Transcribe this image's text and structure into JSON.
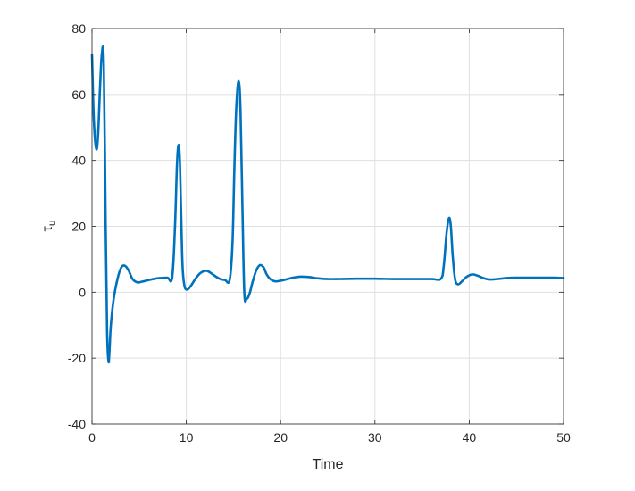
{
  "chart_data": {
    "type": "line",
    "xlabel": "Time",
    "ylabel": "τ",
    "ylabel_subscript": "u",
    "xlim": [
      0,
      50
    ],
    "ylim": [
      -40,
      80
    ],
    "xticks": [
      0,
      10,
      20,
      30,
      40,
      50
    ],
    "yticks": [
      -40,
      -20,
      0,
      20,
      40,
      60,
      80
    ],
    "xtick_labels": [
      "0",
      "10",
      "20",
      "30",
      "40",
      "50"
    ],
    "ytick_labels": [
      "-40",
      "-20",
      "0",
      "20",
      "40",
      "60",
      "80"
    ],
    "grid": true,
    "series": [
      {
        "color": "#0072BD",
        "x": [
          0,
          0.2,
          0.45,
          0.65,
          0.85,
          1.05,
          1.25,
          1.45,
          1.6,
          1.75,
          1.85,
          2.0,
          2.3,
          2.7,
          3.1,
          3.5,
          3.9,
          4.3,
          4.8,
          5.3,
          5.9,
          6.5,
          7.2,
          8.0,
          8.5,
          8.8,
          9.0,
          9.15,
          9.3,
          9.45,
          9.6,
          9.8,
          10.1,
          10.5,
          11.0,
          11.5,
          12.1,
          12.6,
          13.1,
          13.6,
          14.1,
          14.6,
          14.9,
          15.1,
          15.3,
          15.55,
          15.75,
          15.95,
          16.15,
          16.4,
          16.7,
          17.0,
          17.4,
          17.8,
          18.2,
          18.5,
          18.9,
          19.4,
          20.0,
          20.6,
          21.3,
          22.1,
          23.0,
          24.0,
          25.0,
          26.0,
          28.0,
          30.0,
          32.0,
          34.0,
          36.0,
          37.0,
          37.3,
          37.6,
          37.85,
          38.05,
          38.25,
          38.5,
          38.8,
          39.2,
          39.7,
          40.3,
          40.9,
          41.5,
          42.0,
          42.6,
          43.3,
          44.0,
          44.8,
          46.0,
          47.5,
          49.0,
          50.0
        ],
        "y": [
          72,
          52,
          43.5,
          48,
          62,
          72.5,
          69,
          20,
          -12,
          -21,
          -18,
          -10,
          -2,
          4,
          7.5,
          8,
          6.5,
          4,
          3,
          3.2,
          3.6,
          4.0,
          4.3,
          4.4,
          4.5,
          20,
          38,
          44.5,
          41,
          24,
          8,
          2,
          0.8,
          2,
          4.2,
          5.8,
          6.5,
          5.8,
          4.8,
          4.0,
          3.7,
          3.8,
          15,
          38,
          56,
          64,
          55,
          26,
          0,
          -2,
          -0.5,
          2.8,
          6.5,
          8.2,
          7.5,
          5.5,
          4,
          3.3,
          3.5,
          3.9,
          4.4,
          4.7,
          4.6,
          4.2,
          4.0,
          4.0,
          4.1,
          4.1,
          4.0,
          4.0,
          4.0,
          4.1,
          8,
          18,
          22.5,
          20,
          11,
          4,
          2.4,
          3.2,
          4.6,
          5.4,
          5.0,
          4.3,
          3.9,
          3.9,
          4.1,
          4.3,
          4.4,
          4.4,
          4.4,
          4.4,
          4.3
        ]
      }
    ]
  }
}
